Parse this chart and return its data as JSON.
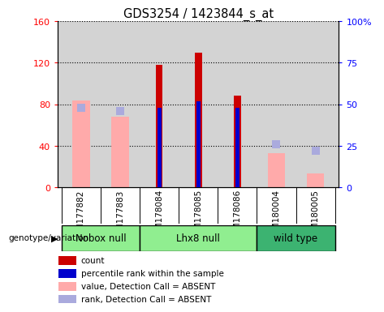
{
  "title": "GDS3254 / 1423844_s_at",
  "samples": [
    "GSM177882",
    "GSM177883",
    "GSM178084",
    "GSM178085",
    "GSM178086",
    "GSM180004",
    "GSM180005"
  ],
  "count_values": [
    null,
    null,
    118,
    130,
    88,
    null,
    null
  ],
  "percentile_values": [
    null,
    null,
    48,
    52,
    48,
    null,
    null
  ],
  "absent_value": [
    84,
    68,
    null,
    null,
    null,
    33,
    14
  ],
  "absent_rank": [
    48,
    46,
    null,
    null,
    null,
    26,
    22
  ],
  "ylim_left": [
    0,
    160
  ],
  "ylim_right": [
    0,
    100
  ],
  "yticks_left": [
    0,
    40,
    80,
    120,
    160
  ],
  "ytick_labels_left": [
    "0",
    "40",
    "80",
    "120",
    "160"
  ],
  "yticks_right": [
    0,
    25,
    50,
    75,
    100
  ],
  "ytick_labels_right": [
    "0",
    "25",
    "50",
    "75",
    "100%"
  ],
  "count_color": "#cc0000",
  "percentile_color": "#0000cc",
  "absent_value_color": "#ffaaaa",
  "absent_rank_color": "#aaaadd",
  "bg_color": "#d3d3d3",
  "group_data": [
    {
      "label": "Nobox null",
      "start": 0,
      "end": 1,
      "color": "#90EE90"
    },
    {
      "label": "Lhx8 null",
      "start": 2,
      "end": 4,
      "color": "#90EE90"
    },
    {
      "label": "wild type",
      "start": 5,
      "end": 6,
      "color": "#3CB371"
    }
  ],
  "legend_items": [
    {
      "color": "#cc0000",
      "label": "count"
    },
    {
      "color": "#0000cc",
      "label": "percentile rank within the sample"
    },
    {
      "color": "#ffaaaa",
      "label": "value, Detection Call = ABSENT"
    },
    {
      "color": "#aaaadd",
      "label": "rank, Detection Call = ABSENT"
    }
  ]
}
